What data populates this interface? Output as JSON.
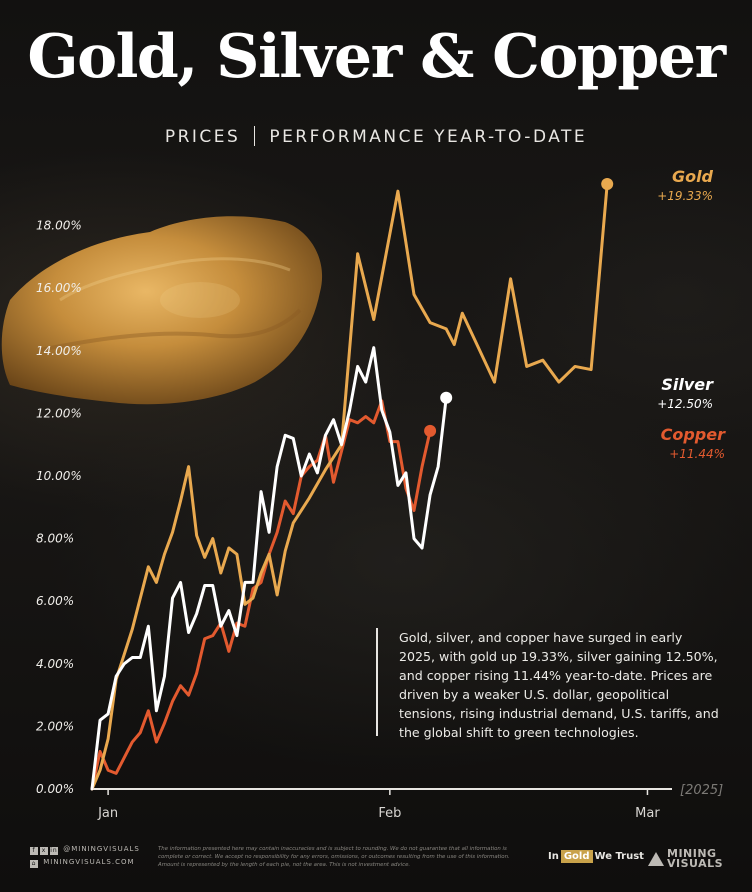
{
  "header": {
    "title": "Gold, Silver & Copper",
    "subtitle_left": "PRICES",
    "subtitle_right": "PERFORMANCE YEAR-TO-DATE"
  },
  "annotation": "Gold, silver, and copper have surged in early 2025, with gold up 19.33%, silver gaining 12.50%, and copper rising 11.44% year-to-date. Prices are driven by a weaker U.S. dollar, geopolitical tensions, rising industrial demand, U.S. tariffs, and the global shift to green technologies.",
  "footer": {
    "social_handle": "@MININGVISUALS",
    "website": "MININGVISUALS.COM",
    "disclaimer": "The information presented here may contain inaccuracies and is subject to rounding. We do not guarantee that all information is complete or correct. We accept no responsibility for any errors, omissions, or outcomes resulting from the use of this information. Amount is represented by the length of each pie, not the area. This is not investment advice.",
    "partner_in": "In",
    "partner_gold": "Gold",
    "partner_trust": "We Trust",
    "brand_line1": "MINING",
    "brand_line2": "VISUALS"
  },
  "colors": {
    "gold": "#e9a94f",
    "silver": "#ffffff",
    "copper": "#e35a2f"
  },
  "chart_data": {
    "type": "line",
    "x_ticks": [
      "Jan",
      "Feb",
      "Mar"
    ],
    "x_tick_index": [
      2,
      37,
      69
    ],
    "year_label": "[2025]",
    "y_ticks": [
      "0.00%",
      "2.00%",
      "4.00%",
      "6.00%",
      "8.00%",
      "10.00%",
      "12.00%",
      "14.00%",
      "16.00%",
      "18.00%"
    ],
    "ylim": [
      0,
      20
    ],
    "series": [
      {
        "name": "Gold",
        "end_label": "+19.33%",
        "color": "#e9a94f",
        "values": [
          0.0,
          0.6,
          1.6,
          3.5,
          5.1,
          7.1,
          6.6,
          7.5,
          8.2,
          9.2,
          10.3,
          8.1,
          7.4,
          8.0,
          6.9,
          7.7,
          7.5,
          5.9,
          6.1,
          6.9,
          7.5,
          6.2,
          7.6,
          8.5,
          9.3,
          10.2,
          11.0,
          17.1,
          15.0,
          19.1,
          15.8,
          14.9,
          14.7,
          14.2,
          15.2,
          14.1,
          13.0,
          16.3,
          13.5,
          13.7,
          13.0,
          13.5,
          13.4,
          19.33
        ],
        "idx": [
          0,
          1,
          2,
          3,
          5,
          7,
          8,
          9,
          10,
          11,
          12,
          13,
          14,
          15,
          16,
          17,
          18,
          19,
          20,
          21,
          22,
          23,
          24,
          25,
          27,
          29,
          31,
          33,
          35,
          38,
          40,
          42,
          44,
          45,
          46,
          48,
          50,
          52,
          54,
          56,
          58,
          60,
          62,
          64
        ]
      },
      {
        "name": "Silver",
        "end_label": "+12.50%",
        "color": "#ffffff",
        "values": [
          0.0,
          2.2,
          2.4,
          3.6,
          4.0,
          4.2,
          4.2,
          5.2,
          2.5,
          3.6,
          6.1,
          6.6,
          5.0,
          5.6,
          6.5,
          6.5,
          5.2,
          5.7,
          4.9,
          6.6,
          6.6,
          9.5,
          8.2,
          10.3,
          11.3,
          11.2,
          10.0,
          10.7,
          10.1,
          11.3,
          11.8,
          11.0,
          12.1,
          13.5,
          13.0,
          14.1,
          12.1,
          11.4,
          9.7,
          10.1,
          8.0,
          7.7,
          9.4,
          10.3,
          12.5
        ],
        "idx": [
          0,
          1,
          2,
          3,
          4,
          5,
          6,
          7,
          8,
          9,
          10,
          11,
          12,
          13,
          14,
          15,
          16,
          17,
          18,
          19,
          20,
          21,
          22,
          23,
          24,
          25,
          26,
          27,
          28,
          29,
          30,
          31,
          32,
          33,
          34,
          35,
          36,
          37,
          38,
          39,
          40,
          41,
          42,
          43,
          44
        ]
      },
      {
        "name": "Copper",
        "end_label": "+11.44%",
        "color": "#e35a2f",
        "values": [
          0.0,
          1.2,
          0.6,
          0.5,
          1.0,
          1.5,
          1.8,
          2.5,
          1.5,
          2.1,
          2.8,
          3.3,
          3.0,
          3.7,
          4.8,
          4.9,
          5.3,
          4.4,
          5.3,
          5.2,
          6.4,
          6.6,
          7.5,
          8.2,
          9.2,
          8.8,
          10.0,
          10.3,
          10.5,
          11.3,
          9.8,
          10.8,
          11.8,
          11.7,
          11.9,
          11.7,
          12.4,
          11.1,
          11.1,
          9.6,
          8.9,
          10.3,
          11.44
        ],
        "idx": [
          0,
          1,
          2,
          3,
          4,
          5,
          6,
          7,
          8,
          9,
          10,
          11,
          12,
          13,
          14,
          15,
          16,
          17,
          18,
          19,
          20,
          21,
          22,
          23,
          24,
          25,
          26,
          27,
          28,
          29,
          30,
          31,
          32,
          33,
          34,
          35,
          36,
          37,
          38,
          39,
          40,
          41,
          42
        ]
      }
    ]
  }
}
